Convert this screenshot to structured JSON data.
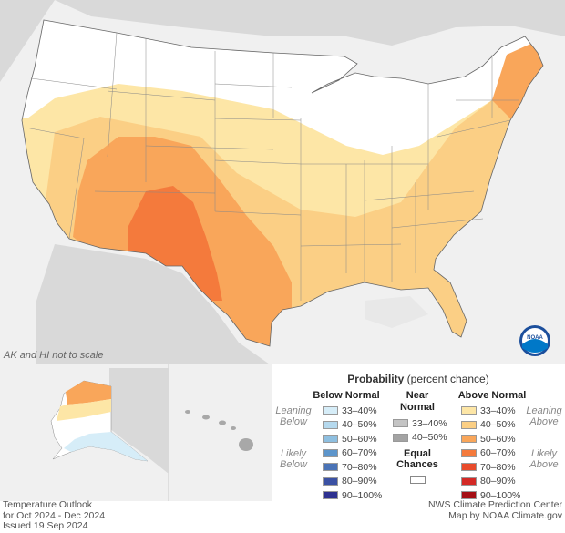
{
  "map": {
    "note": "AK and HI not to scale",
    "logo_text": "NOAA",
    "colors": {
      "above_33_40": "#fde6a6",
      "above_40_50": "#fbcf85",
      "above_50_60": "#f9a65a",
      "above_60_70": "#f47a3c",
      "background_land": "#d9d9d9",
      "water": "#f2f2f2"
    }
  },
  "legend": {
    "title_bold": "Probability",
    "title_rest": " (percent chance)",
    "below_head": "Below Normal",
    "near_head_1": "Near",
    "near_head_2": "Normal",
    "above_head": "Above Normal",
    "leaning_below_1": "Leaning",
    "leaning_below_2": "Below",
    "likely_below_1": "Likely",
    "likely_below_2": "Below",
    "leaning_above_1": "Leaning",
    "leaning_above_2": "Above",
    "likely_above_1": "Likely",
    "likely_above_2": "Above",
    "equal_1": "Equal",
    "equal_2": "Chances",
    "below": [
      {
        "label": "33–40%",
        "color": "#d6edf8"
      },
      {
        "label": "40–50%",
        "color": "#b5d9ee"
      },
      {
        "label": "50–60%",
        "color": "#8ebfe0"
      },
      {
        "label": "60–70%",
        "color": "#5d95cb"
      },
      {
        "label": "70–80%",
        "color": "#4a73b6"
      },
      {
        "label": "80–90%",
        "color": "#3b51a3"
      },
      {
        "label": "90–100%",
        "color": "#2e3190"
      }
    ],
    "near": [
      {
        "label": "33–40%",
        "color": "#c4c4c4"
      },
      {
        "label": "40–50%",
        "color": "#a3a3a3"
      }
    ],
    "above": [
      {
        "label": "33–40%",
        "color": "#fde6a6"
      },
      {
        "label": "40–50%",
        "color": "#fbcf85"
      },
      {
        "label": "50–60%",
        "color": "#f9a65a"
      },
      {
        "label": "60–70%",
        "color": "#f47a3c"
      },
      {
        "label": "70–80%",
        "color": "#e84b2b"
      },
      {
        "label": "80–90%",
        "color": "#d42a26"
      },
      {
        "label": "90–100%",
        "color": "#a50f15"
      }
    ]
  },
  "footer": {
    "line1": "Temperature Outlook",
    "line2": "for Oct 2024 - Dec 2024",
    "line3": "Issued 19 Sep 2024",
    "right1": "NWS Climate Prediction Center",
    "right2": "Map by NOAA Climate.gov"
  }
}
